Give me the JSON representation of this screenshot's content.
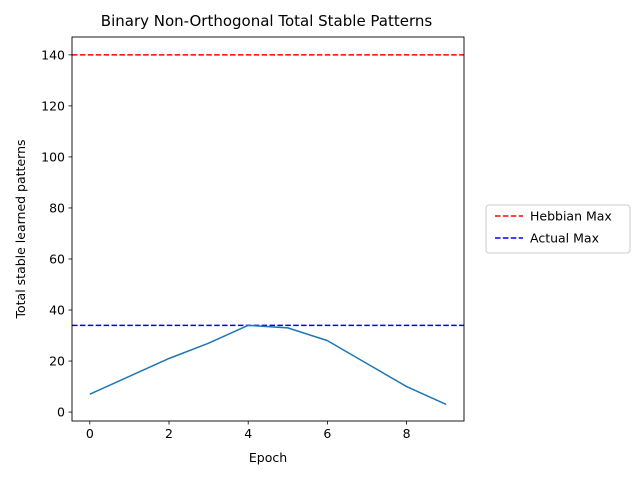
{
  "chart_data": {
    "type": "line",
    "title": "Binary Non-Orthogonal Total Stable Patterns",
    "xlabel": "Epoch",
    "ylabel": "Total stable learned patterns",
    "xlim": [
      -0.45,
      9.45
    ],
    "ylim": [
      -3.5,
      147
    ],
    "xticks": [
      0,
      2,
      4,
      6,
      8
    ],
    "yticks": [
      0,
      20,
      40,
      60,
      80,
      100,
      120,
      140
    ],
    "grid": false,
    "legend_position": "outside-right",
    "x": [
      0,
      1,
      2,
      3,
      4,
      5,
      6,
      7,
      8,
      9
    ],
    "series": [
      {
        "values": [
          7,
          14,
          21,
          27,
          34,
          33,
          28,
          19,
          10,
          3
        ],
        "color": "#1f77b4",
        "style": "solid"
      }
    ],
    "reference_lines": [
      {
        "name": "Hebbian Max",
        "y": 140,
        "color": "#ff0000",
        "style": "dashed"
      },
      {
        "name": "Actual Max",
        "y": 34,
        "color": "#0000ff",
        "style": "dashed"
      }
    ]
  }
}
